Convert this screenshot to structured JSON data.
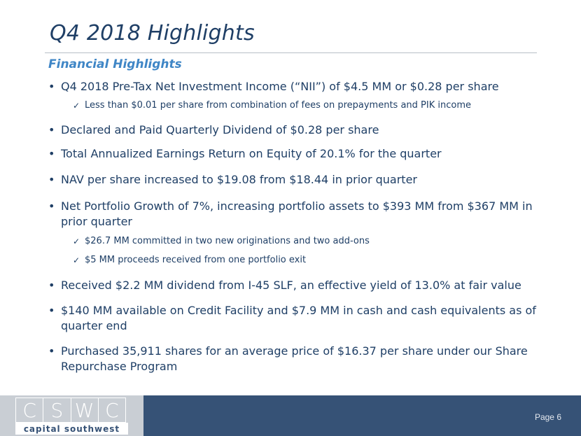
{
  "slide": {
    "title": "Q4 2018 Highlights",
    "subtitle": "Financial Highlights",
    "page_label": "Page 6"
  },
  "bullets": [
    {
      "text": "Q4 2018 Pre-Tax Net Investment Income (“NII”) of $4.5 MM or $0.28 per share"
    },
    {
      "text": "Declared and Paid Quarterly Dividend of $0.28 per share"
    },
    {
      "text": "Total Annualized Earnings Return on Equity of 20.1% for the quarter"
    },
    {
      "text": "NAV per share increased to $19.08 from $18.44 in prior quarter"
    },
    {
      "text": "Net Portfolio Growth of 7%, increasing portfolio assets to $393 MM from $367 MM in prior quarter"
    },
    {
      "text": "Received $2.2 MM dividend from I-45 SLF, an effective yield of 13.0% at fair value"
    },
    {
      "text": "$140 MM available on Credit Facility and $7.9 MM in cash and cash equivalents as of quarter end"
    },
    {
      "text": "Purchased 35,911 shares for an average price of $16.37 per share under our Share Repurchase Program"
    }
  ],
  "sub_bullets": [
    {
      "text": "Less than $0.01 per share from combination of fees on prepayments and PIK income"
    },
    {
      "text": "$26.7 MM committed in two new originations and two add-ons"
    },
    {
      "text": "$5 MM proceeds received from one portfolio exit"
    }
  ],
  "glyphs": {
    "bullet": "•",
    "check": "✓"
  },
  "logo": {
    "letters": [
      "C",
      "S",
      "W",
      "C"
    ],
    "name": "capital southwest"
  },
  "colors": {
    "title": "#1f3f66",
    "subtitle": "#3f86c6",
    "footer": "#365276",
    "logo_bg": "#c9ced4"
  }
}
